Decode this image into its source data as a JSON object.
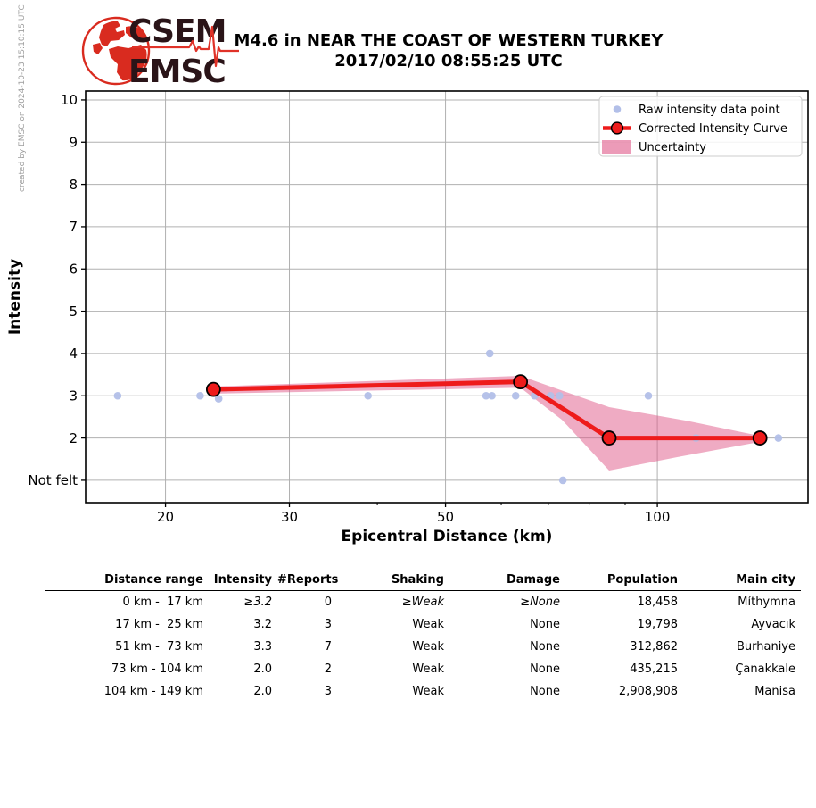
{
  "credit": "created by EMSC on 2024-10-23 15:10:15 UTC",
  "logo": {
    "line1": "CSEM",
    "line2": "EMSC"
  },
  "title": {
    "line1": "M4.6 in NEAR THE COAST OF WESTERN TURKEY",
    "line2": "2017/02/10 08:55:25 UTC"
  },
  "chart_data": {
    "type": "line",
    "title": "",
    "xlabel": "Epicentral Distance (km)",
    "ylabel": "Intensity",
    "x_scale": "log",
    "xlim": [
      15.4,
      163.7
    ],
    "ylim": [
      0.47,
      10.21
    ],
    "x_major_ticks": [
      20,
      30,
      50,
      100
    ],
    "x_minor_ticks": [
      40,
      60,
      70,
      80,
      90
    ],
    "y_ticks": [
      {
        "value": 1,
        "label": "Not felt"
      },
      {
        "value": 2,
        "label": "2"
      },
      {
        "value": 3,
        "label": "3"
      },
      {
        "value": 4,
        "label": "4"
      },
      {
        "value": 5,
        "label": "5"
      },
      {
        "value": 6,
        "label": "6"
      },
      {
        "value": 7,
        "label": "7"
      },
      {
        "value": 8,
        "label": "8"
      },
      {
        "value": 9,
        "label": "9"
      },
      {
        "value": 10,
        "label": "10"
      }
    ],
    "grid": true,
    "legend_position": "upper right",
    "legend": [
      {
        "label": "Raw intensity data point",
        "type": "dot"
      },
      {
        "label": "Corrected Intensity Curve",
        "type": "line-marker"
      },
      {
        "label": "Uncertainty",
        "type": "patch"
      }
    ],
    "series": [
      {
        "name": "Raw intensity data point",
        "type": "scatter",
        "points": [
          [
            17.1,
            3.0
          ],
          [
            22.4,
            3.0
          ],
          [
            23.8,
            2.93
          ],
          [
            38.8,
            3.0
          ],
          [
            57.8,
            4.0
          ],
          [
            57.1,
            3.0
          ],
          [
            58.2,
            3.0
          ],
          [
            62.9,
            3.0
          ],
          [
            66.9,
            3.0
          ],
          [
            70.5,
            3.0
          ],
          [
            72.6,
            3.0
          ],
          [
            73.4,
            1.0
          ],
          [
            97.1,
            3.0
          ],
          [
            113.5,
            2.0
          ],
          [
            148.6,
            2.0
          ]
        ]
      },
      {
        "name": "Corrected Intensity Curve",
        "type": "line",
        "points": [
          [
            23.4,
            3.15
          ],
          [
            63.9,
            3.33
          ],
          [
            85.4,
            2.0
          ],
          [
            139.9,
            2.0
          ]
        ]
      },
      {
        "name": "Uncertainty",
        "type": "band",
        "upper": [
          [
            23.4,
            3.22
          ],
          [
            63.9,
            3.47
          ],
          [
            85.4,
            2.73
          ],
          [
            109.9,
            2.41
          ],
          [
            139.9,
            2.05
          ]
        ],
        "lower": [
          [
            23.4,
            3.05
          ],
          [
            63.9,
            3.19
          ],
          [
            73.2,
            2.43
          ],
          [
            85.4,
            1.23
          ],
          [
            106.9,
            1.55
          ],
          [
            139.9,
            1.91
          ]
        ]
      }
    ],
    "colors": {
      "raw_point": "#b2bfe8",
      "curve": "#ee1b1b",
      "band": "#e05888",
      "grid": "#b0b0b0",
      "axis": "#000000"
    }
  },
  "table": {
    "headers": [
      "Distance range",
      "Intensity",
      "#Reports",
      "Shaking",
      "Damage",
      "Population",
      "Main city"
    ],
    "rows": [
      {
        "cells": [
          "0 km -  17 km",
          "≥3.2",
          "0",
          "≥Weak",
          "≥None",
          "18,458",
          "Míthymna"
        ],
        "italic": [
          false,
          true,
          false,
          true,
          true,
          false,
          false
        ]
      },
      {
        "cells": [
          "17 km -  25 km",
          "3.2",
          "3",
          "Weak",
          "None",
          "19,798",
          "Ayvacık"
        ],
        "italic": [
          false,
          false,
          false,
          false,
          false,
          false,
          false
        ]
      },
      {
        "cells": [
          "51 km -  73 km",
          "3.3",
          "7",
          "Weak",
          "None",
          "312,862",
          "Burhaniye"
        ],
        "italic": [
          false,
          false,
          false,
          false,
          false,
          false,
          false
        ]
      },
      {
        "cells": [
          "73 km - 104 km",
          "2.0",
          "2",
          "Weak",
          "None",
          "435,215",
          "Çanakkale"
        ],
        "italic": [
          false,
          false,
          false,
          false,
          false,
          false,
          false
        ]
      },
      {
        "cells": [
          "104 km - 149 km",
          "2.0",
          "3",
          "Weak",
          "None",
          "2,908,908",
          "Manisa"
        ],
        "italic": [
          false,
          false,
          false,
          false,
          false,
          false,
          false
        ]
      }
    ]
  }
}
